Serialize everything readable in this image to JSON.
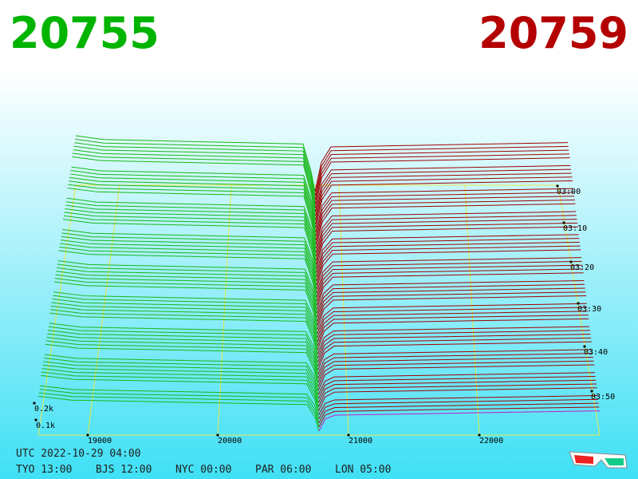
{
  "header": {
    "bid": "20755",
    "ask": "20759"
  },
  "axes": {
    "price_ticks": [
      "19000",
      "20000",
      "21000",
      "22000"
    ],
    "time_ticks": [
      "03:00",
      "03:10",
      "03:20",
      "03:30",
      "03:40",
      "03:50"
    ],
    "depth_ticks": [
      "0.2k",
      "0.1k"
    ]
  },
  "footer": {
    "utc": "UTC 2022-10-29 04:00",
    "clocks": [
      "TYO 13:00",
      "BJS 12:00",
      "NYC 00:00",
      "PAR 06:00",
      "LON 05:00"
    ]
  }
}
